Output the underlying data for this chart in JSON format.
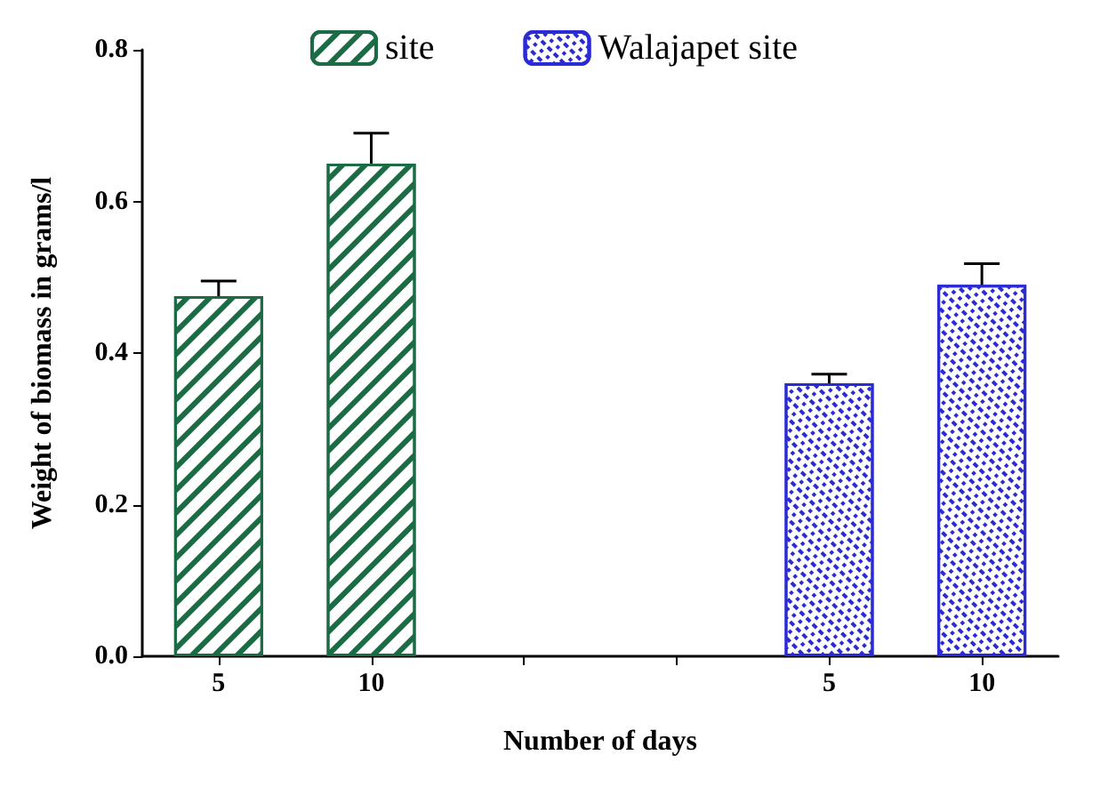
{
  "chart_data": {
    "type": "bar",
    "xlabel": "Number of days",
    "ylabel": "Weight of biomass in grams/l",
    "categories": [
      "5",
      "10",
      null,
      null,
      "5",
      "10"
    ],
    "series": [
      {
        "name": "site",
        "color": "#1b6b45",
        "values": [
          0.475,
          0.65,
          null,
          null,
          null,
          null
        ],
        "errors": [
          [
            0.475,
            0.495
          ],
          [
            0.65,
            0.69
          ],
          null,
          null,
          null,
          null
        ]
      },
      {
        "name": "Walajapet site",
        "color": "#2b2bd6",
        "values": [
          null,
          null,
          null,
          null,
          0.36,
          0.49
        ],
        "errors": [
          null,
          null,
          null,
          null,
          [
            0.36,
            0.372
          ],
          [
            0.49,
            0.518
          ]
        ]
      }
    ],
    "ylim": [
      0,
      0.8
    ],
    "yticks": [
      {
        "value": 0,
        "label": "0.0"
      },
      {
        "value": 0.2,
        "label": "0.2"
      },
      {
        "value": 0.4,
        "label": "0.4"
      },
      {
        "value": 0.6,
        "label": "0.6"
      },
      {
        "value": 0.8,
        "label": "0.8"
      }
    ],
    "grid": false,
    "legend": "top"
  }
}
